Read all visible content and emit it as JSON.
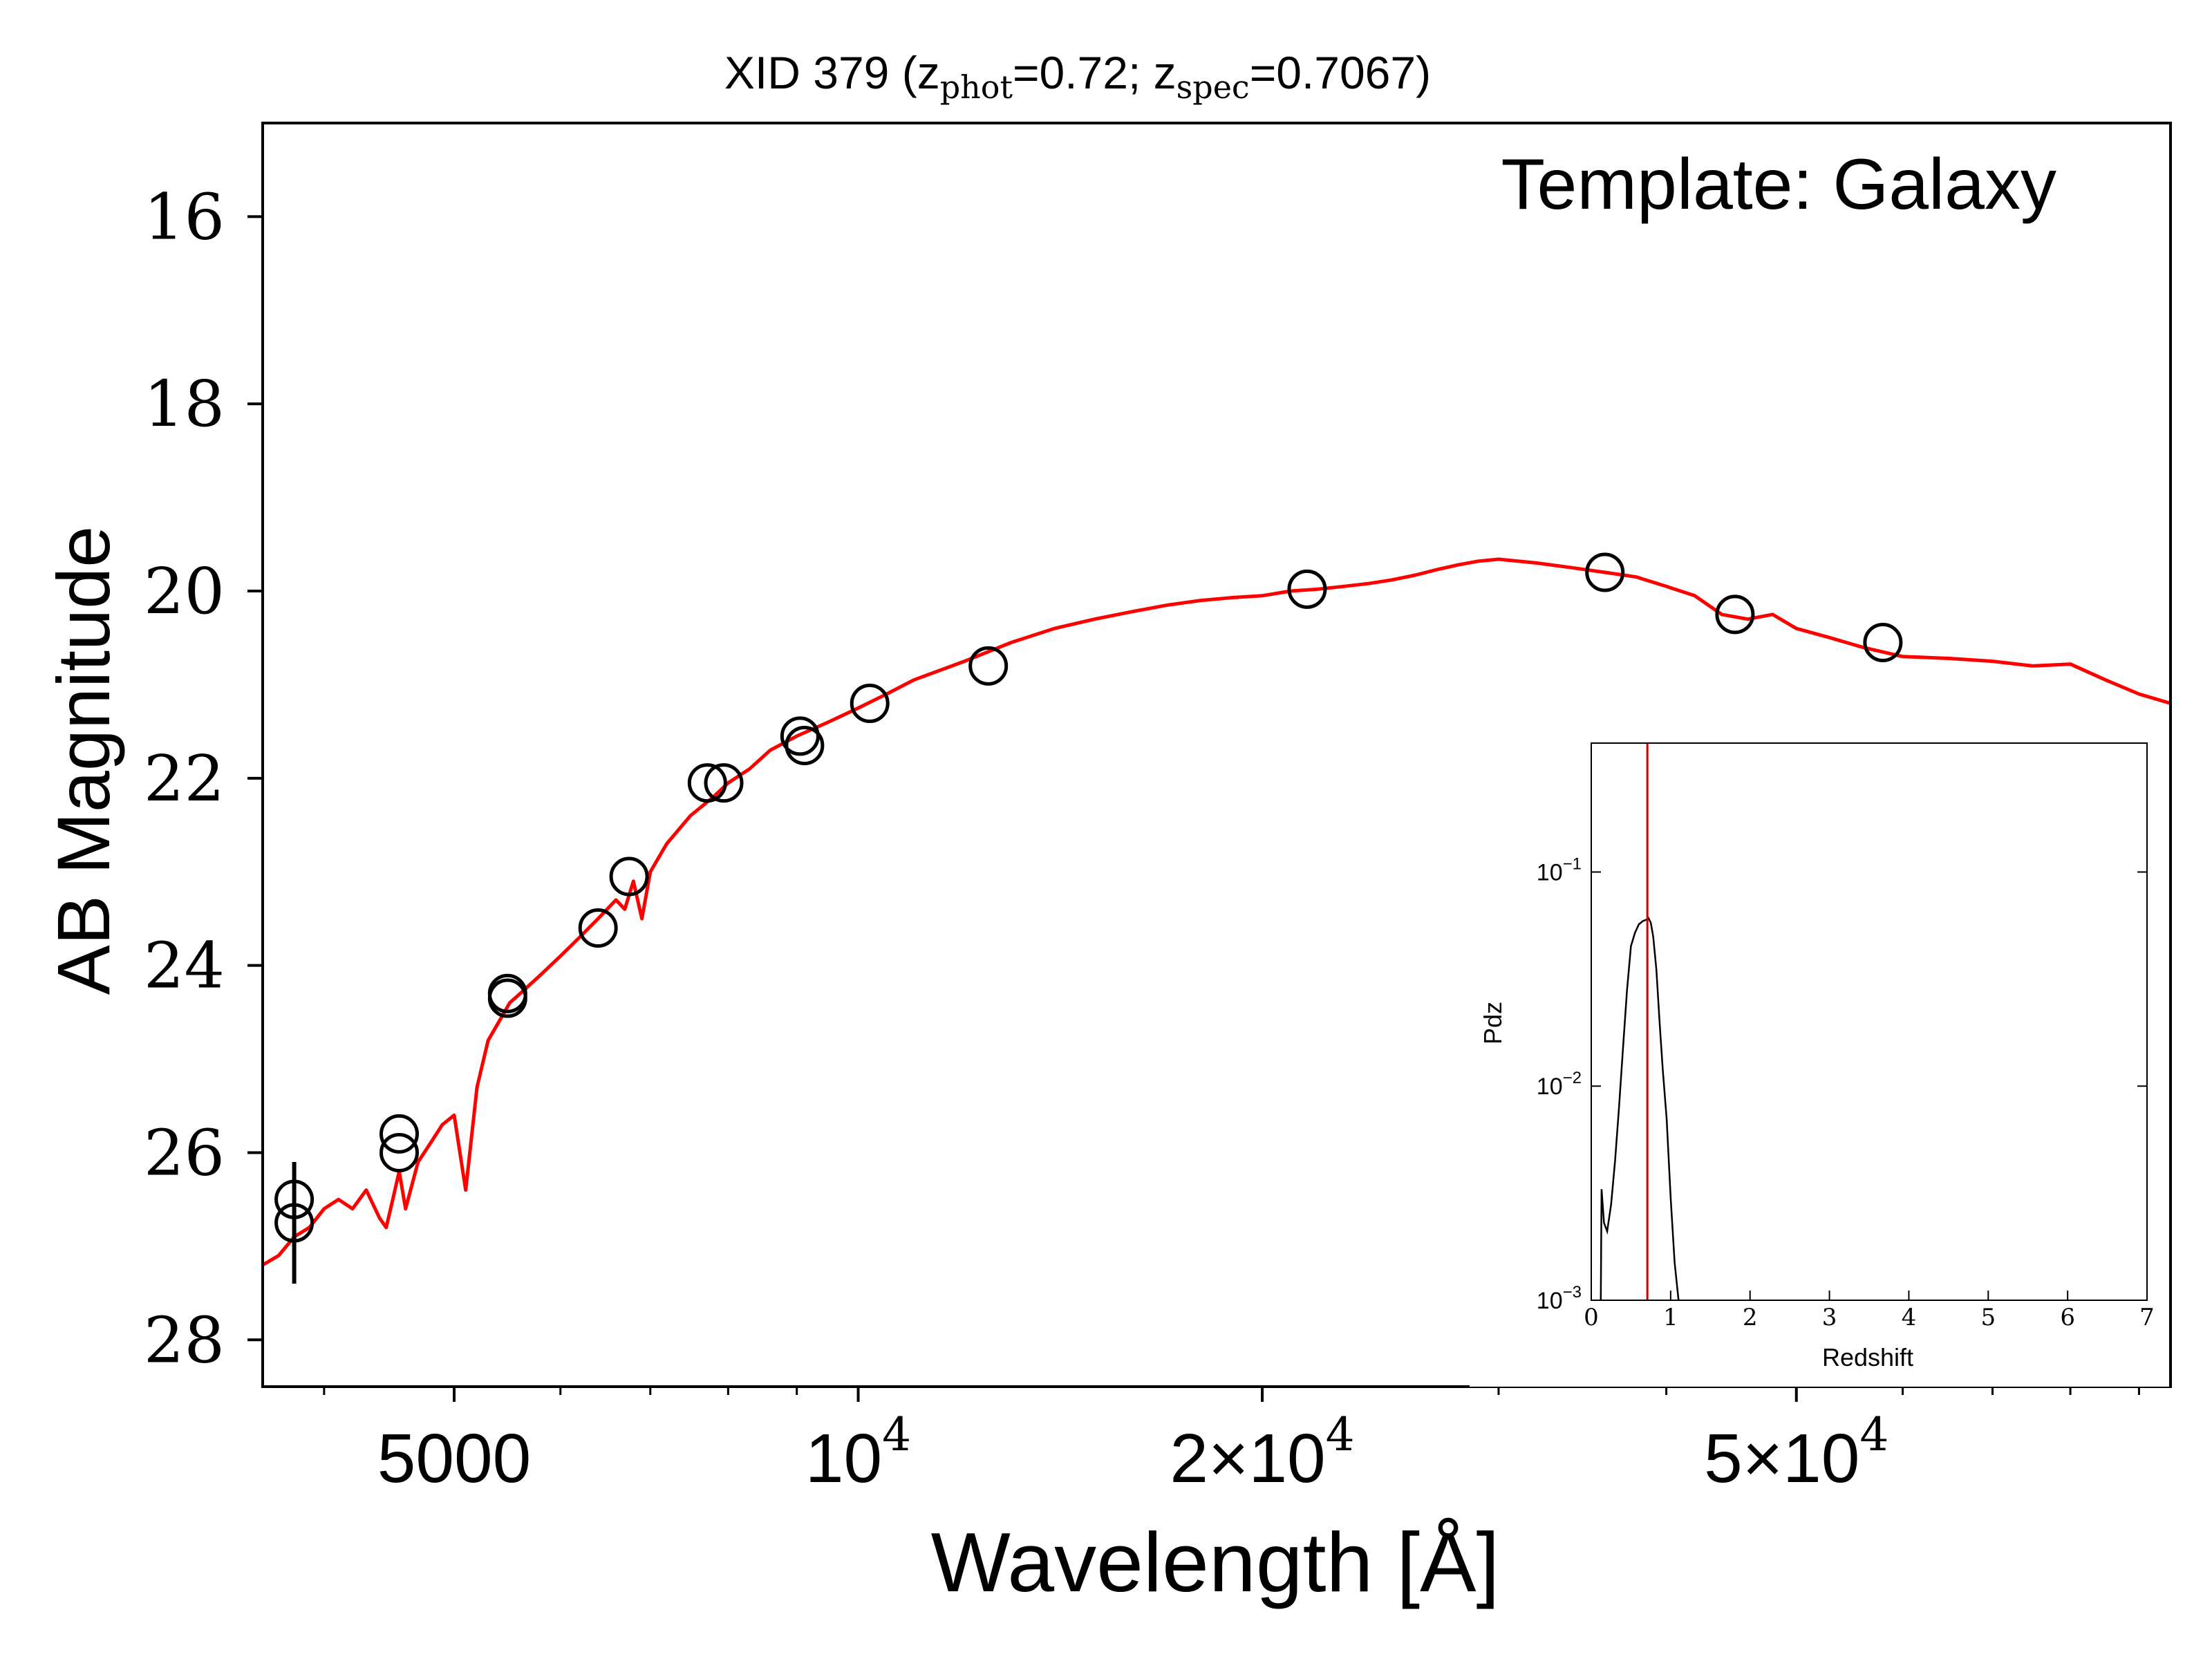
{
  "chart_data": [
    {
      "type": "line",
      "title": {
        "prefix": "XID 379 (z",
        "sub1": "phot",
        "mid": "=0.72; z",
        "sub2": "spec",
        "suffix": "=0.7067)"
      },
      "xlabel": "Wavelength [Å]",
      "ylabel": "AB Magnitude",
      "annotation": "Template: Galaxy",
      "x_scale": "log",
      "xlim": [
        3600,
        95000
      ],
      "ylim": [
        28.5,
        15.0
      ],
      "y_inverted": true,
      "x_ticks": [
        {
          "value": 5000,
          "label": "5000",
          "base": "",
          "exp": ""
        },
        {
          "value": 10000,
          "label": "",
          "base": "10",
          "exp": "4"
        },
        {
          "value": 20000,
          "label": "2×",
          "base": "10",
          "exp": "4"
        },
        {
          "value": 50000,
          "label": "5×",
          "base": "10",
          "exp": "4"
        }
      ],
      "x_minor_ticks": [
        4000,
        6000,
        7000,
        8000,
        9000,
        30000,
        40000,
        60000,
        70000,
        80000,
        90000
      ],
      "y_ticks": [
        {
          "value": 16,
          "label": "16"
        },
        {
          "value": 18,
          "label": "18"
        },
        {
          "value": 20,
          "label": "20"
        },
        {
          "value": 22,
          "label": "22"
        },
        {
          "value": 24,
          "label": "24"
        },
        {
          "value": 26,
          "label": "26"
        },
        {
          "value": 28,
          "label": "28"
        }
      ],
      "grid": false,
      "colors": {
        "model": "#ff0000",
        "photometry": "#000000"
      },
      "series": [
        {
          "role": "model",
          "x": [
            3600,
            3700,
            3800,
            3900,
            4000,
            4100,
            4200,
            4300,
            4400,
            4450,
            4500,
            4550,
            4600,
            4700,
            4800,
            4900,
            5000,
            5100,
            5200,
            5300,
            5400,
            5500,
            5600,
            5800,
            6000,
            6200,
            6400,
            6600,
            6700,
            6800,
            6900,
            7000,
            7200,
            7500,
            7800,
            8000,
            8300,
            8600,
            9000,
            9500,
            10000,
            10500,
            11000,
            12000,
            13000,
            14000,
            15000,
            16000,
            17000,
            18000,
            19000,
            20000,
            21000,
            22000,
            23000,
            24000,
            25000,
            26000,
            27000,
            28000,
            29000,
            30000,
            32000,
            34000,
            36000,
            38000,
            40000,
            42000,
            44000,
            46000,
            48000,
            50000,
            53000,
            56000,
            60000,
            65000,
            70000,
            75000,
            80000,
            85000,
            90000,
            95000
          ],
          "y": [
            27.2,
            27.1,
            26.9,
            26.8,
            26.6,
            26.5,
            26.6,
            26.4,
            26.7,
            26.8,
            26.5,
            26.2,
            26.6,
            26.1,
            25.9,
            25.7,
            25.6,
            26.4,
            25.3,
            24.8,
            24.6,
            24.4,
            24.3,
            24.1,
            23.9,
            23.7,
            23.5,
            23.3,
            23.4,
            23.1,
            23.5,
            23.0,
            22.7,
            22.4,
            22.2,
            22.05,
            21.9,
            21.7,
            21.55,
            21.4,
            21.25,
            21.1,
            20.95,
            20.75,
            20.55,
            20.4,
            20.3,
            20.22,
            20.15,
            20.1,
            20.07,
            20.05,
            20.0,
            19.98,
            19.95,
            19.92,
            19.88,
            19.83,
            19.77,
            19.72,
            19.68,
            19.66,
            19.7,
            19.75,
            19.8,
            19.85,
            19.95,
            20.05,
            20.25,
            20.3,
            20.25,
            20.4,
            20.5,
            20.6,
            20.7,
            20.72,
            20.75,
            20.8,
            20.78,
            20.95,
            21.1,
            21.2
          ]
        },
        {
          "role": "photometry",
          "x": [
            3800,
            3800,
            4550,
            4550,
            5480,
            5480,
            6400,
            6750,
            7720,
            7940,
            9050,
            9120,
            10200,
            12500,
            21600,
            36000,
            45000,
            58000
          ],
          "y": [
            26.5,
            26.75,
            25.8,
            26.0,
            24.3,
            24.35,
            23.6,
            23.05,
            22.05,
            22.05,
            21.55,
            21.65,
            21.2,
            20.8,
            19.98,
            19.8,
            20.25,
            20.55
          ],
          "yerr": [
            0.0,
            0.65,
            0.0,
            0.0,
            0.0,
            0.0,
            0.0,
            0.0,
            0.0,
            0.0,
            0.0,
            0.0,
            0.0,
            0.0,
            0.0,
            0.0,
            0.0,
            0.0
          ]
        }
      ]
    },
    {
      "type": "line",
      "xlabel": "Redshift",
      "ylabel": "Pdz",
      "y_scale": "log",
      "xlim": [
        0,
        7
      ],
      "ylim": [
        0.001,
        0.4
      ],
      "x_ticks": [
        "0",
        "1",
        "2",
        "3",
        "4",
        "5",
        "6",
        "7"
      ],
      "y_ticks": [
        {
          "value": 0.1,
          "base": "10",
          "exp": "−1"
        },
        {
          "value": 0.01,
          "base": "10",
          "exp": "−2"
        },
        {
          "value": 0.001,
          "base": "10",
          "exp": "−3"
        }
      ],
      "marker_line": {
        "x": 0.7067,
        "color": "#cc0000"
      },
      "series": [
        {
          "role": "pdz",
          "x": [
            0.12,
            0.13,
            0.16,
            0.2,
            0.25,
            0.3,
            0.35,
            0.4,
            0.45,
            0.5,
            0.55,
            0.6,
            0.65,
            0.7,
            0.72,
            0.75,
            0.78,
            0.82,
            0.86,
            0.9,
            0.95,
            1.0,
            1.05,
            1.1
          ],
          "y": [
            0.001,
            0.0033,
            0.0023,
            0.0021,
            0.0028,
            0.0045,
            0.008,
            0.015,
            0.028,
            0.045,
            0.052,
            0.057,
            0.059,
            0.06,
            0.061,
            0.058,
            0.05,
            0.035,
            0.02,
            0.012,
            0.007,
            0.003,
            0.0015,
            0.001
          ]
        }
      ]
    }
  ]
}
